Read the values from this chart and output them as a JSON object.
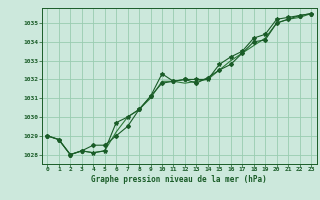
{
  "xlabel": "Graphe pression niveau de la mer (hPa)",
  "bg_color": "#cce8dc",
  "grid_color": "#99ccb0",
  "line_color_dark": "#1a5c28",
  "line_color_mid": "#2d7a3a",
  "xlim": [
    -0.5,
    23.5
  ],
  "ylim": [
    1027.5,
    1035.8
  ],
  "yticks": [
    1028,
    1029,
    1030,
    1031,
    1032,
    1033,
    1034,
    1035
  ],
  "xticks": [
    0,
    1,
    2,
    3,
    4,
    5,
    6,
    7,
    8,
    9,
    10,
    11,
    12,
    13,
    14,
    15,
    16,
    17,
    18,
    19,
    20,
    21,
    22,
    23
  ],
  "series1": [
    1029.0,
    1028.8,
    1028.0,
    1028.2,
    1028.1,
    1028.2,
    1029.7,
    1030.0,
    1030.4,
    1031.1,
    1032.3,
    1031.9,
    1032.0,
    1032.0,
    1032.0,
    1032.8,
    1033.2,
    1033.5,
    1034.2,
    1034.4,
    1035.2,
    1035.3,
    1035.4,
    1035.5
  ],
  "series2": [
    1029.0,
    1028.8,
    1028.0,
    1028.2,
    1028.5,
    1028.5,
    1029.0,
    1029.5,
    1030.4,
    1031.1,
    1031.8,
    1031.9,
    1032.0,
    1031.8,
    1032.1,
    1032.5,
    1032.8,
    1033.4,
    1034.0,
    1034.1,
    1035.0,
    1035.2,
    1035.4,
    1035.5
  ],
  "series3": [
    1029.0,
    1028.8,
    1028.0,
    1028.2,
    1028.1,
    1028.2,
    1029.2,
    1030.0,
    1030.4,
    1031.0,
    1031.9,
    1031.9,
    1031.8,
    1031.9,
    1032.0,
    1032.5,
    1033.0,
    1033.4,
    1033.8,
    1034.2,
    1035.0,
    1035.2,
    1035.3,
    1035.5
  ],
  "xlabel_fontsize": 5.5,
  "tick_fontsize": 4.5
}
